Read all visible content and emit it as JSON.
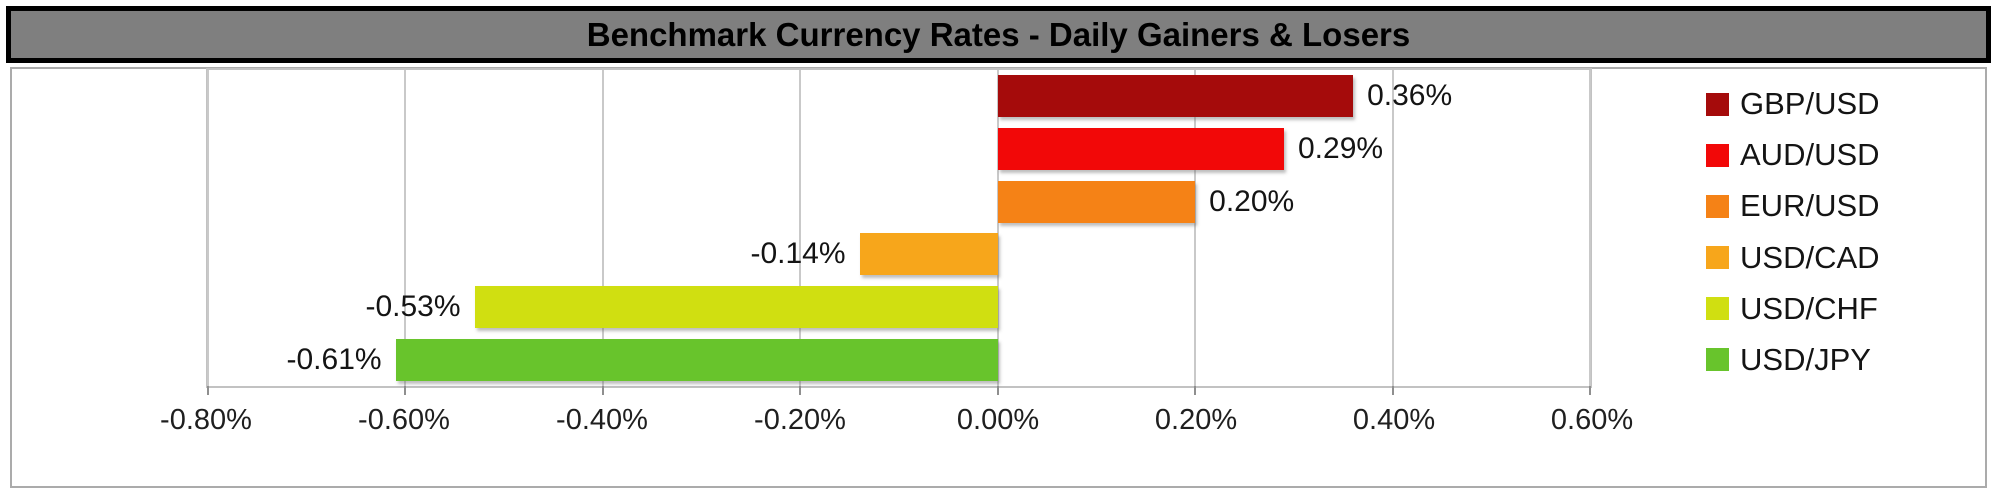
{
  "title": "Benchmark Currency Rates - Daily Gainers & Losers",
  "colors": {
    "title_bar_bg": "#7F7F7F",
    "title_bar_border": "#000000",
    "chart_border": "#ABABAB",
    "gridline": "#C9C9C9",
    "text": "#141414"
  },
  "chart_data": {
    "type": "bar",
    "orientation": "horizontal",
    "title": "Benchmark Currency Rates - Daily Gainers & Losers",
    "categories": [
      "GBP/USD",
      "AUD/USD",
      "EUR/USD",
      "USD/CAD",
      "USD/CHF",
      "USD/JPY"
    ],
    "values": [
      0.36,
      0.29,
      0.2,
      -0.14,
      -0.53,
      -0.61
    ],
    "data_labels": [
      "0.36%",
      "0.29%",
      "0.20%",
      "-0.14%",
      "-0.53%",
      "-0.61%"
    ],
    "colors": [
      "#A50B0B",
      "#F20808",
      "#F58216",
      "#F7A61B",
      "#D0DF11",
      "#68C42C"
    ],
    "xlim": [
      -0.8,
      0.6
    ],
    "x_ticks": [
      {
        "value": -0.8,
        "label": "-0.80%"
      },
      {
        "value": -0.6,
        "label": "-0.60%"
      },
      {
        "value": -0.4,
        "label": "-0.40%"
      },
      {
        "value": -0.2,
        "label": "-0.20%"
      },
      {
        "value": 0.0,
        "label": "0.00%"
      },
      {
        "value": 0.2,
        "label": "0.20%"
      },
      {
        "value": 0.4,
        "label": "0.40%"
      },
      {
        "value": 0.6,
        "label": "0.60%"
      }
    ],
    "grid": "vertical",
    "legend_position": "right",
    "xlabel": "",
    "ylabel": ""
  }
}
